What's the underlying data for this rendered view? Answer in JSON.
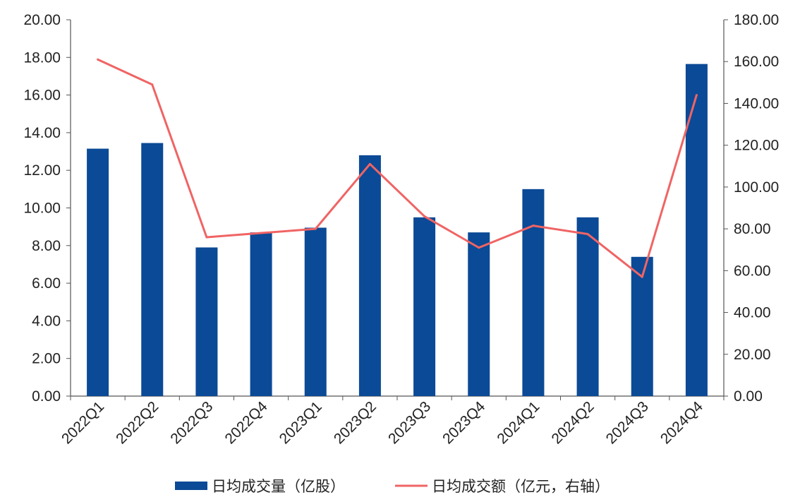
{
  "chart_data": {
    "type": "bar",
    "categories": [
      "2022Q1",
      "2022Q2",
      "2022Q3",
      "2022Q4",
      "2023Q1",
      "2023Q2",
      "2023Q3",
      "2023Q4",
      "2024Q1",
      "2024Q2",
      "2024Q3",
      "2024Q4"
    ],
    "series": [
      {
        "name": "日均成交量（亿股）",
        "type": "bar",
        "axis": "left",
        "color": "#0B4A96",
        "values": [
          13.15,
          13.45,
          7.9,
          8.7,
          8.95,
          12.8,
          9.5,
          8.7,
          11.0,
          9.5,
          7.4,
          17.65
        ]
      },
      {
        "name": "日均成交额（亿元，右轴）",
        "type": "line",
        "axis": "right",
        "color": "#F06464",
        "values": [
          161.0,
          149.0,
          76.0,
          78.0,
          80.0,
          111.0,
          86.0,
          71.0,
          81.5,
          77.5,
          57.0,
          144.0
        ]
      }
    ],
    "y_left": {
      "min": 0,
      "max": 20,
      "ticks": [
        "0.00",
        "2.00",
        "4.00",
        "6.00",
        "8.00",
        "10.00",
        "12.00",
        "14.00",
        "16.00",
        "18.00",
        "20.00"
      ]
    },
    "y_right": {
      "min": 0,
      "max": 180,
      "ticks": [
        "0.00",
        "20.00",
        "40.00",
        "60.00",
        "80.00",
        "100.00",
        "120.00",
        "140.00",
        "160.00",
        "180.00"
      ]
    },
    "grid": false,
    "legend_position": "bottom-center",
    "title": "",
    "xlabel": "",
    "ylabel": ""
  }
}
